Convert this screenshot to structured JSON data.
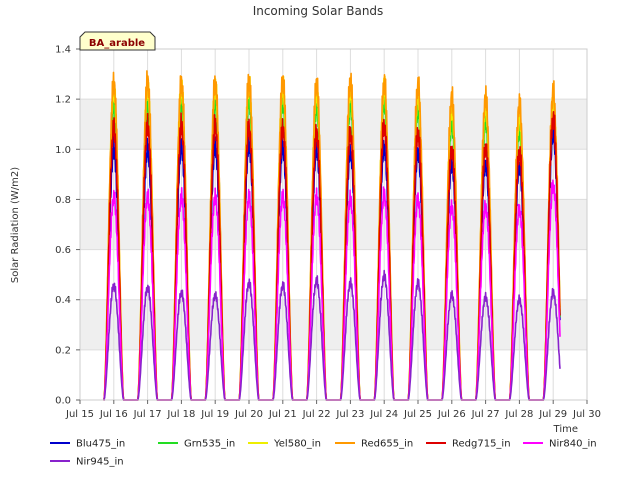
{
  "chart_data": {
    "type": "line",
    "title": "Incoming Solar Bands",
    "xlabel": "Time",
    "ylabel": "Solar Radiation (W/m2)",
    "badge": "BA_arable",
    "xlim": [
      15,
      30
    ],
    "ylim": [
      0,
      1.4
    ],
    "x_ticks": [
      15,
      16,
      17,
      18,
      19,
      20,
      21,
      22,
      23,
      24,
      25,
      26,
      27,
      28,
      29,
      30
    ],
    "x_tick_labels": [
      "Jul 15",
      "Jul 16",
      "Jul 17",
      "Jul 18",
      "Jul 19",
      "Jul 20",
      "Jul 21",
      "Jul 22",
      "Jul 23",
      "Jul 24",
      "Jul 25",
      "Jul 26",
      "Jul 27",
      "Jul 28",
      "Jul 29",
      "Jul 30"
    ],
    "y_ticks": [
      0,
      0.2,
      0.4,
      0.6,
      0.8,
      1.0,
      1.2,
      1.4
    ],
    "y_tick_labels": [
      "0.0",
      "0.2",
      "0.4",
      "0.6",
      "0.8",
      "1.0",
      "1.2",
      "1.4"
    ],
    "grid": true,
    "legend_position": "bottom",
    "x_start": 15.7,
    "x_end": 29.2,
    "day_centers": [
      16.0,
      17.0,
      18.0,
      19.0,
      20.0,
      21.0,
      22.0,
      23.0,
      24.0,
      25.0,
      26.0,
      27.0,
      28.0,
      29.0
    ],
    "series": [
      {
        "name": "Blu475_in",
        "color": "#0000cc",
        "peaks": [
          1.05,
          1.05,
          1.06,
          1.06,
          1.07,
          1.06,
          1.05,
          1.04,
          1.06,
          1.04,
          0.99,
          0.99,
          0.98,
          1.12
        ]
      },
      {
        "name": "Grn535_in",
        "color": "#22dd22",
        "peaks": [
          1.24,
          1.25,
          1.25,
          1.25,
          1.26,
          1.25,
          1.23,
          1.24,
          1.25,
          1.22,
          1.16,
          1.17,
          1.13,
          1.2
        ]
      },
      {
        "name": "Yel580_in",
        "color": "#eeee00",
        "peaks": [
          1.3,
          1.31,
          1.31,
          1.31,
          1.32,
          1.31,
          1.29,
          1.3,
          1.31,
          1.28,
          1.22,
          1.23,
          1.19,
          1.25
        ]
      },
      {
        "name": "Red655_in",
        "color": "#ff9900",
        "peaks": [
          1.33,
          1.34,
          1.33,
          1.33,
          1.34,
          1.34,
          1.33,
          1.34,
          1.33,
          1.32,
          1.27,
          1.27,
          1.24,
          1.29
        ]
      },
      {
        "name": "Redg715_in",
        "color": "#dd0000",
        "peaks": [
          1.14,
          1.15,
          1.15,
          1.15,
          1.14,
          1.14,
          1.12,
          1.12,
          1.15,
          1.12,
          1.05,
          1.06,
          1.04,
          1.18
        ]
      },
      {
        "name": "Nir840_in",
        "color": "#ff00ff",
        "peaks": [
          0.85,
          0.85,
          0.85,
          0.85,
          0.85,
          0.85,
          0.85,
          0.84,
          0.86,
          0.84,
          0.81,
          0.81,
          0.8,
          0.9
        ]
      },
      {
        "name": "Nir945_in",
        "color": "#8822cc",
        "peaks": [
          0.48,
          0.47,
          0.45,
          0.44,
          0.49,
          0.48,
          0.5,
          0.49,
          0.52,
          0.49,
          0.44,
          0.43,
          0.42,
          0.45
        ]
      }
    ]
  }
}
